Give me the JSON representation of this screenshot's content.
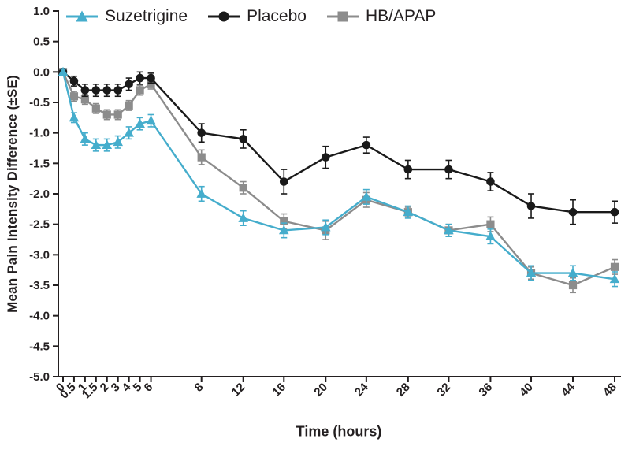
{
  "chart_data": {
    "type": "line",
    "title": "",
    "xlabel": "Time (hours)",
    "ylabel": "Mean Pain Intensity Difference (±SE)",
    "ylim": [
      -5.0,
      1.0
    ],
    "ytick_step": 0.5,
    "grid": false,
    "legend_position": "top-left",
    "y_ticks": [
      "1.0",
      "0.5",
      "0.0",
      "-0.5",
      "-1.0",
      "-1.5",
      "-2.0",
      "-2.5",
      "-3.0",
      "-3.5",
      "-4.0",
      "-4.5",
      "-5.0"
    ],
    "x_ticks": [
      "0",
      "0.5",
      "1",
      "1.5",
      "2",
      "3",
      "4",
      "5",
      "6",
      "8",
      "12",
      "16",
      "20",
      "24",
      "28",
      "32",
      "36",
      "40",
      "44",
      "48"
    ],
    "x_units": [
      0,
      1,
      2,
      3,
      4,
      5,
      6,
      7,
      8,
      12.6,
      16.4,
      20.1,
      23.9,
      27.6,
      31.4,
      35.1,
      38.9,
      42.6,
      46.4,
      50.2
    ],
    "x_axis_layout": "broken time axis: 0-6 h compressed ticks, 8-48 h evenly spaced",
    "series": [
      {
        "name": "Suzetrigine",
        "color": "#45ADCC",
        "marker": "triangle",
        "values": [
          0,
          -0.75,
          -1.1,
          -1.2,
          -1.2,
          -1.15,
          -1.0,
          -0.85,
          -0.8,
          -2.0,
          -2.4,
          -2.6,
          -2.55,
          -2.05,
          -2.3,
          -2.6,
          -2.7,
          -3.3,
          -3.3,
          -3.4
        ],
        "se": [
          0.05,
          0.08,
          0.1,
          0.1,
          0.1,
          0.1,
          0.1,
          0.1,
          0.1,
          0.12,
          0.12,
          0.12,
          0.12,
          0.12,
          0.1,
          0.1,
          0.12,
          0.12,
          0.12,
          0.12
        ]
      },
      {
        "name": "Placebo",
        "color": "#1A1A1A",
        "marker": "circle",
        "values": [
          0,
          -0.15,
          -0.3,
          -0.3,
          -0.3,
          -0.3,
          -0.2,
          -0.1,
          -0.1,
          -1.0,
          -1.1,
          -1.8,
          -1.4,
          -1.2,
          -1.6,
          -1.6,
          -1.8,
          -2.2,
          -2.3,
          -2.3
        ],
        "se": [
          0.05,
          0.08,
          0.1,
          0.1,
          0.1,
          0.1,
          0.1,
          0.1,
          0.08,
          0.15,
          0.15,
          0.2,
          0.18,
          0.13,
          0.15,
          0.15,
          0.15,
          0.2,
          0.2,
          0.18
        ]
      },
      {
        "name": "HB/APAP",
        "color": "#8C8C8C",
        "marker": "square",
        "values": [
          0,
          -0.4,
          -0.45,
          -0.6,
          -0.7,
          -0.7,
          -0.55,
          -0.3,
          -0.2,
          -1.4,
          -1.9,
          -2.45,
          -2.6,
          -2.1,
          -2.3,
          -2.6,
          -2.5,
          -3.3,
          -3.5,
          -3.2
        ],
        "se": [
          0.05,
          0.08,
          0.08,
          0.08,
          0.08,
          0.08,
          0.08,
          0.08,
          0.08,
          0.12,
          0.1,
          0.12,
          0.15,
          0.12,
          0.08,
          0.1,
          0.12,
          0.1,
          0.12,
          0.12
        ]
      }
    ]
  }
}
